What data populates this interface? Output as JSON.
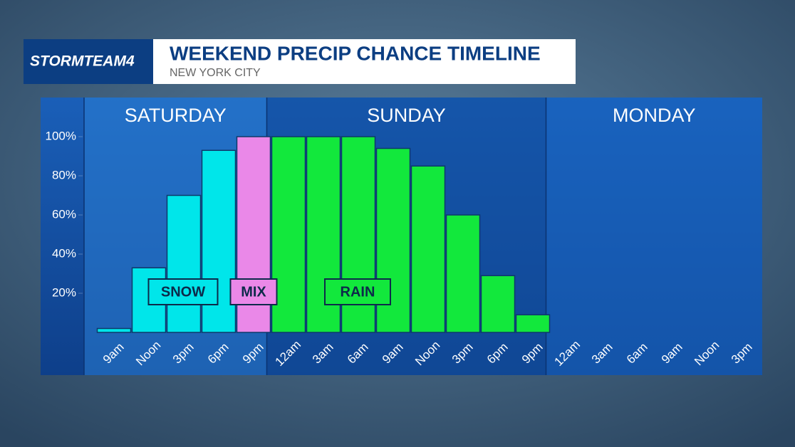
{
  "chart_data": {
    "type": "bar",
    "brand": "STORMTEAM4",
    "title": "WEEKEND PRECIP CHANCE TIMELINE",
    "subtitle": "NEW YORK CITY",
    "days": [
      "SATURDAY",
      "SUNDAY",
      "MONDAY"
    ],
    "categories": [
      "9am",
      "Noon",
      "3pm",
      "6pm",
      "9pm",
      "12am",
      "3am",
      "6am",
      "9am",
      "Noon",
      "3pm",
      "6pm",
      "9pm",
      "12am",
      "3am",
      "6am",
      "9am",
      "Noon",
      "3pm"
    ],
    "series": [
      {
        "name": "SNOW",
        "color": "#00e6ea",
        "values": [
          2,
          33,
          70,
          93,
          null,
          null,
          null,
          null,
          null,
          null,
          null,
          null,
          null,
          null,
          null,
          null,
          null,
          null,
          null
        ]
      },
      {
        "name": "MIX",
        "color": "#ea88e8",
        "values": [
          null,
          null,
          null,
          null,
          100,
          null,
          null,
          null,
          null,
          null,
          null,
          null,
          null,
          null,
          null,
          null,
          null,
          null,
          null
        ]
      },
      {
        "name": "RAIN",
        "color": "#12e83c",
        "values": [
          null,
          null,
          null,
          null,
          null,
          100,
          100,
          100,
          94,
          85,
          60,
          29,
          9,
          null,
          null,
          null,
          null,
          null,
          null
        ]
      }
    ],
    "ylim": [
      0,
      100
    ],
    "yticks": [
      {
        "value": 20,
        "label": "20%"
      },
      {
        "value": 40,
        "label": "40%"
      },
      {
        "value": 60,
        "label": "60%"
      },
      {
        "value": 80,
        "label": "80%"
      },
      {
        "value": 100,
        "label": "100%"
      }
    ]
  }
}
